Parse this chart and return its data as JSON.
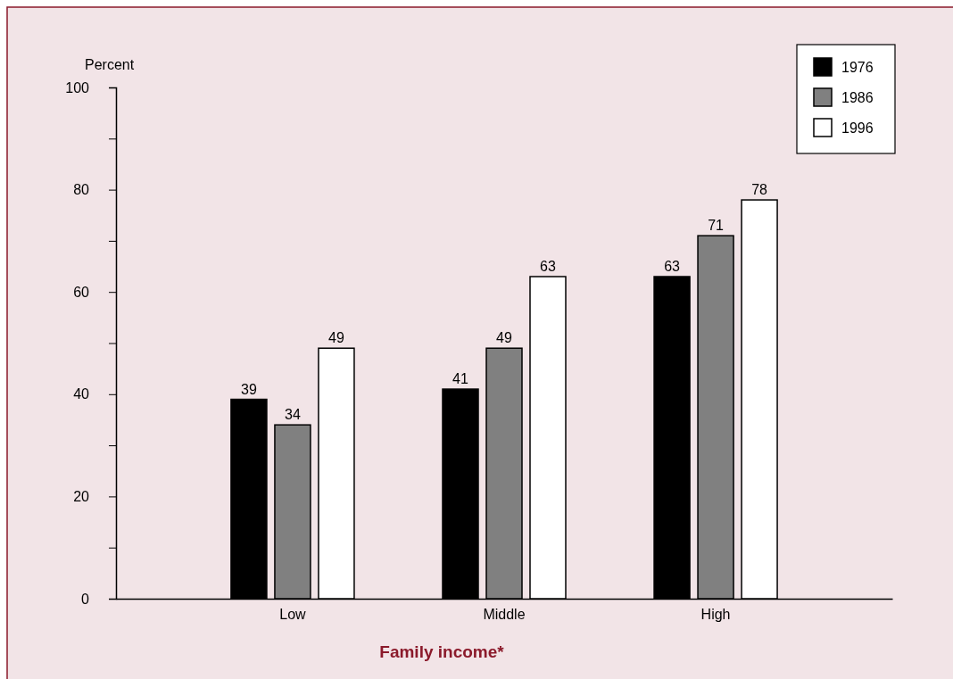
{
  "chart_data": {
    "type": "bar",
    "xlabel": "Family income*",
    "ylabel": "Percent",
    "categories": [
      "Low",
      "Middle",
      "High"
    ],
    "series": [
      {
        "name": "1976",
        "color": "#000000",
        "values": [
          39,
          41,
          63
        ]
      },
      {
        "name": "1986",
        "color": "#808080",
        "values": [
          34,
          49,
          71
        ]
      },
      {
        "name": "1996",
        "color": "#ffffff",
        "values": [
          49,
          63,
          78
        ]
      }
    ],
    "ylim": [
      0,
      100
    ],
    "yticks": [
      0,
      {
        "value": 10,
        "label": null
      },
      20,
      {
        "value": 30,
        "label": null
      },
      40,
      {
        "value": 50,
        "label": null
      },
      60,
      {
        "value": 70,
        "label": null
      },
      80,
      {
        "value": 90,
        "label": null
      },
      100
    ],
    "data_labels": true,
    "legend": "top right",
    "grid": false
  }
}
